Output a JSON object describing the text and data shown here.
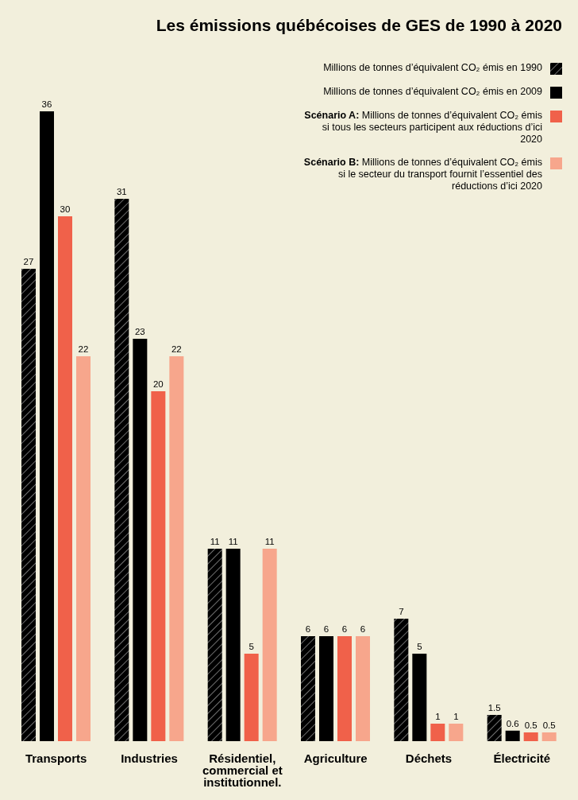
{
  "chart_data": {
    "type": "bar",
    "title": "Les émissions québécoises de GES de 1990 à 2020",
    "categories": [
      "Transports",
      "Industries",
      "Résidentiel, commercial et institutionnel.",
      "Agriculture",
      "Déchets",
      "Électricité"
    ],
    "series": [
      {
        "name": "Millions de tonnes d’équivalent CO₂ émis en 1990",
        "color": "#000000",
        "values": [
          27,
          31,
          11,
          6,
          7,
          1.5
        ]
      },
      {
        "name": "Millions de tonnes d’équivalent CO₂ émis en 2009",
        "color": "#000000",
        "values": [
          36,
          23,
          11,
          6,
          5,
          0.6
        ]
      },
      {
        "name": "Scénario A: Millions de tonnes d’équivalent CO₂ émis si tous les secteurs participent aux réductions d’ici 2020",
        "color": "#f0614a",
        "values": [
          30,
          20,
          5,
          6,
          1,
          0.5
        ]
      },
      {
        "name": "Scénario B: Millions de tonnes d’équivalent CO₂ émis si le secteur du transport fournit l’essentiel des réductions d’ici 2020",
        "color": "#f7a68c",
        "values": [
          22,
          22,
          11,
          6,
          1,
          0.5
        ]
      }
    ],
    "data_labels": true,
    "legend": "top right",
    "grid": false
  }
}
